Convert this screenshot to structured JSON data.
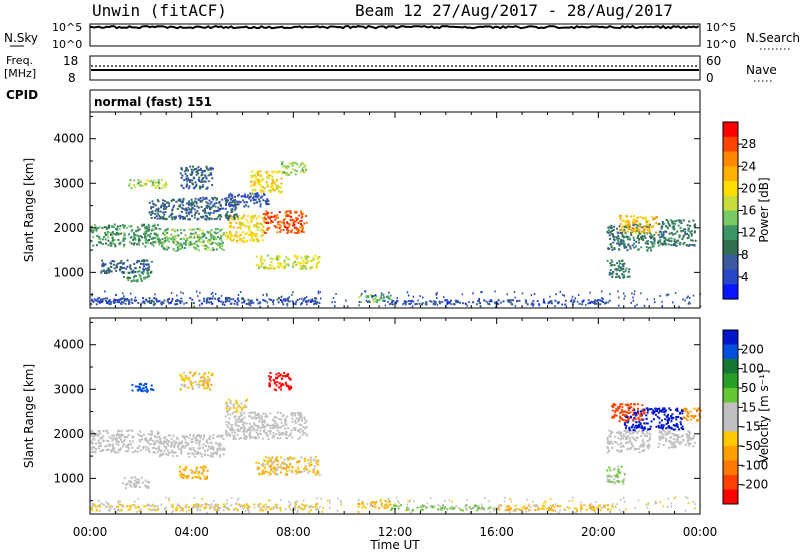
{
  "header": {
    "station": "Unwin (fitACF)",
    "beam": "Beam 12 27/Aug/2017 - 28/Aug/2017"
  },
  "top_panels": {
    "nsky": {
      "label": "N.Sky",
      "ticks": [
        "10^5",
        "10^0"
      ],
      "right_label": "N.Search",
      "right_ticks": [
        "10^5",
        "10^0"
      ]
    },
    "freq": {
      "label_line1": "Freq.",
      "label_line2": "[MHz]",
      "ticks": [
        "18",
        "8"
      ],
      "right_label": "Nave",
      "right_ticks": [
        "60",
        "0"
      ]
    },
    "cpid": {
      "label": "CPID",
      "text": "normal (fast) 151"
    }
  },
  "time_axis": {
    "label": "Time UT",
    "ticks": [
      "00:00",
      "04:00",
      "08:00",
      "12:00",
      "16:00",
      "20:00",
      "00:00"
    ]
  },
  "colorbars": {
    "power": {
      "label": "Power [dB]",
      "ticks": [
        "28",
        "24",
        "20",
        "16",
        "12",
        "8",
        "4"
      ],
      "colors": [
        "#ff0000",
        "#ff4400",
        "#ff8800",
        "#ffb000",
        "#ffdd00",
        "#c8dc3c",
        "#78c864",
        "#3c9664",
        "#326e50",
        "#3c5aa0",
        "#2846c8",
        "#0a14ff"
      ]
    },
    "velocity": {
      "label": "Velocity [m s⁻¹]",
      "ticks": [
        "200",
        "100",
        "50",
        "15",
        "-15",
        "-50",
        "-100",
        "-200"
      ],
      "colors": [
        "#0014c8",
        "#0050dc",
        "#147832",
        "#28a028",
        "#64c832",
        "#c0c0c0",
        "#c0c0c0",
        "#ffc800",
        "#ffa000",
        "#ff7800",
        "#ff4000",
        "#ff0000"
      ]
    }
  },
  "chart_data": [
    {
      "type": "heatmap",
      "title": "Power",
      "ylabel": "Slant Range [km]",
      "xlabel": "",
      "x_range": [
        "00:00",
        "24:00"
      ],
      "ylim": [
        200,
        4600
      ],
      "yticks": [
        1000,
        2000,
        3000,
        4000
      ],
      "regions": [
        {
          "t0": 0.0,
          "t1": 2.7,
          "r0": 1600,
          "r1": 2100,
          "value": 12
        },
        {
          "t0": 2.7,
          "t1": 5.3,
          "r0": 1500,
          "r1": 2000,
          "value": 14
        },
        {
          "t0": 5.3,
          "t1": 6.8,
          "r0": 1700,
          "r1": 2300,
          "value": 20
        },
        {
          "t0": 6.8,
          "t1": 8.5,
          "r0": 1900,
          "r1": 2400,
          "value": 27
        },
        {
          "t0": 6.5,
          "t1": 9.0,
          "r0": 1100,
          "r1": 1400,
          "value": 18
        },
        {
          "t0": 2.3,
          "t1": 5.8,
          "r0": 2200,
          "r1": 2700,
          "value": 8
        },
        {
          "t0": 5.3,
          "t1": 7.0,
          "r0": 2500,
          "r1": 2800,
          "value": 6
        },
        {
          "t0": 3.5,
          "t1": 4.8,
          "r0": 2900,
          "r1": 3400,
          "value": 8
        },
        {
          "t0": 1.5,
          "t1": 3.0,
          "r0": 2900,
          "r1": 3100,
          "value": 16
        },
        {
          "t0": 6.3,
          "t1": 7.5,
          "r0": 2800,
          "r1": 3300,
          "value": 20
        },
        {
          "t0": 7.5,
          "t1": 8.5,
          "r0": 3200,
          "r1": 3500,
          "value": 16
        },
        {
          "t0": 1.2,
          "t1": 2.3,
          "r0": 800,
          "r1": 1050,
          "value": 12
        },
        {
          "t0": 0.4,
          "t1": 2.4,
          "r0": 1000,
          "r1": 1300,
          "value": 8
        },
        {
          "t0": 0.0,
          "t1": 9.0,
          "r0": 300,
          "r1": 450,
          "value": 6
        },
        {
          "t0": 10.5,
          "t1": 11.8,
          "r0": 350,
          "r1": 520,
          "value": 14
        },
        {
          "t0": 11.8,
          "t1": 20.5,
          "r0": 300,
          "r1": 400,
          "value": 6
        },
        {
          "t0": 20.3,
          "t1": 22.2,
          "r0": 1500,
          "r1": 2100,
          "value": 10
        },
        {
          "t0": 20.8,
          "t1": 22.3,
          "r0": 1900,
          "r1": 2300,
          "value": 22
        },
        {
          "t0": 22.3,
          "t1": 23.8,
          "r0": 1600,
          "r1": 2200,
          "value": 10
        },
        {
          "t0": 20.3,
          "t1": 21.2,
          "r0": 900,
          "r1": 1300,
          "value": 10
        }
      ]
    },
    {
      "type": "heatmap",
      "title": "Velocity",
      "ylabel": "Slant Range [km]",
      "xlabel": "Time UT",
      "x_range": [
        "00:00",
        "24:00"
      ],
      "ylim": [
        200,
        4600
      ],
      "yticks": [
        1000,
        2000,
        3000,
        4000
      ],
      "regions": [
        {
          "t0": 0.0,
          "t1": 2.7,
          "r0": 1600,
          "r1": 2100,
          "value": 0
        },
        {
          "t0": 2.7,
          "t1": 5.3,
          "r0": 1500,
          "r1": 2000,
          "value": 0
        },
        {
          "t0": 5.3,
          "t1": 8.5,
          "r0": 1900,
          "r1": 2500,
          "value": 0
        },
        {
          "t0": 6.5,
          "t1": 9.0,
          "r0": 1100,
          "r1": 1500,
          "value": -30
        },
        {
          "t0": 3.5,
          "t1": 4.6,
          "r0": 1000,
          "r1": 1300,
          "value": -40
        },
        {
          "t0": 1.5,
          "t1": 2.5,
          "r0": 2950,
          "r1": 3150,
          "value": 150
        },
        {
          "t0": 7.0,
          "t1": 7.9,
          "r0": 3000,
          "r1": 3400,
          "value": -200
        },
        {
          "t0": 3.5,
          "t1": 4.8,
          "r0": 3000,
          "r1": 3400,
          "value": -30
        },
        {
          "t0": 5.3,
          "t1": 6.2,
          "r0": 2500,
          "r1": 2800,
          "value": -20
        },
        {
          "t0": 1.2,
          "t1": 2.3,
          "r0": 800,
          "r1": 1050,
          "value": 0
        },
        {
          "t0": 0.0,
          "t1": 9.0,
          "r0": 300,
          "r1": 450,
          "value": -20
        },
        {
          "t0": 10.5,
          "t1": 11.8,
          "r0": 350,
          "r1": 520,
          "value": -40
        },
        {
          "t0": 11.8,
          "t1": 16.0,
          "r0": 300,
          "r1": 420,
          "value": 40
        },
        {
          "t0": 16.0,
          "t1": 20.5,
          "r0": 300,
          "r1": 420,
          "value": -40
        },
        {
          "t0": 20.3,
          "t1": 22.0,
          "r0": 1600,
          "r1": 2100,
          "value": 0
        },
        {
          "t0": 21.0,
          "t1": 23.3,
          "r0": 2100,
          "r1": 2600,
          "value": 210
        },
        {
          "t0": 20.5,
          "t1": 21.8,
          "r0": 2300,
          "r1": 2700,
          "value": -150
        },
        {
          "t0": 23.3,
          "t1": 24.0,
          "r0": 2300,
          "r1": 2600,
          "value": -80
        },
        {
          "t0": 22.3,
          "t1": 23.8,
          "r0": 1700,
          "r1": 2100,
          "value": 0
        },
        {
          "t0": 20.3,
          "t1": 21.0,
          "r0": 900,
          "r1": 1300,
          "value": 40
        }
      ]
    }
  ]
}
